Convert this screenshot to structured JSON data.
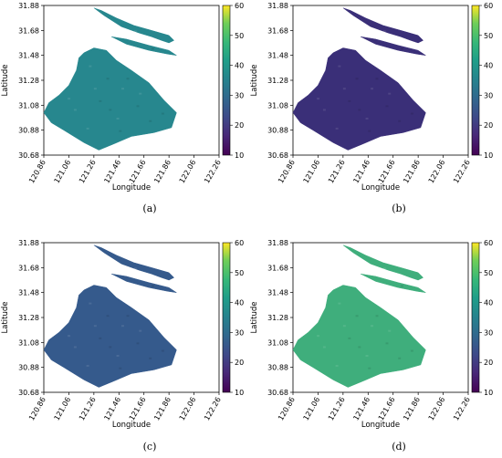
{
  "chart_data": [
    {
      "type": "heatmap",
      "panel_label": "(a)",
      "xlabel": "Longitude",
      "ylabel": "Latitude",
      "xticks": [
        "120.86",
        "121.06",
        "121.26",
        "121.46",
        "121.66",
        "121.86",
        "122.06",
        "122.26"
      ],
      "yticks": [
        "31.88",
        "31.68",
        "31.48",
        "31.28",
        "31.08",
        "30.88",
        "30.68"
      ],
      "xlim": [
        120.86,
        122.26
      ],
      "ylim": [
        30.68,
        31.88
      ],
      "colorbar": {
        "range": [
          10,
          60
        ],
        "ticks": [
          "60",
          "50",
          "40",
          "30",
          "20",
          "10"
        ],
        "colormap": "viridis"
      },
      "dominant_value": 33,
      "edge_value": 50,
      "color": "#27878e"
    },
    {
      "type": "heatmap",
      "panel_label": "(b)",
      "xlabel": "Longitude",
      "ylabel": "Latitude",
      "xticks": [
        "120.86",
        "121.06",
        "121.26",
        "121.46",
        "121.66",
        "121.86",
        "122.06",
        "122.26"
      ],
      "yticks": [
        "31.88",
        "31.68",
        "31.48",
        "31.28",
        "31.08",
        "30.88",
        "30.68"
      ],
      "xlim": [
        120.86,
        122.26
      ],
      "ylim": [
        30.68,
        31.88
      ],
      "colorbar": {
        "range": [
          10,
          60
        ],
        "ticks": [
          "60",
          "50",
          "40",
          "30",
          "20",
          "10"
        ],
        "colormap": "viridis"
      },
      "dominant_value": 15,
      "edge_value": 20,
      "color": "#3a2f78"
    },
    {
      "type": "heatmap",
      "panel_label": "(c)",
      "xlabel": "Longitude",
      "ylabel": "Latitude",
      "xticks": [
        "120.86",
        "121.06",
        "121.26",
        "121.46",
        "121.66",
        "121.86",
        "122.06",
        "122.26"
      ],
      "yticks": [
        "31.88",
        "31.68",
        "31.48",
        "31.28",
        "31.08",
        "30.88",
        "30.68"
      ],
      "xlim": [
        120.86,
        122.26
      ],
      "ylim": [
        30.68,
        31.88
      ],
      "colorbar": {
        "range": [
          10,
          60
        ],
        "ticks": [
          "60",
          "50",
          "40",
          "30",
          "20",
          "10"
        ],
        "colormap": "viridis"
      },
      "dominant_value": 25,
      "edge_value": 15,
      "color": "#355a8c"
    },
    {
      "type": "heatmap",
      "panel_label": "(d)",
      "xlabel": "Longitude",
      "ylabel": "Latitude",
      "xticks": [
        "120.86",
        "121.06",
        "121.26",
        "121.46",
        "121.66",
        "121.86",
        "122.06",
        "122.26"
      ],
      "yticks": [
        "31.88",
        "31.68",
        "31.48",
        "31.28",
        "31.08",
        "30.88",
        "30.68"
      ],
      "xlim": [
        120.86,
        122.26
      ],
      "ylim": [
        30.68,
        31.88
      ],
      "colorbar": {
        "range": [
          10,
          60
        ],
        "ticks": [
          "60",
          "50",
          "40",
          "30",
          "20",
          "10"
        ],
        "colormap": "viridis"
      },
      "dominant_value": 42,
      "edge_value": 55,
      "color": "#3fae7c"
    }
  ]
}
